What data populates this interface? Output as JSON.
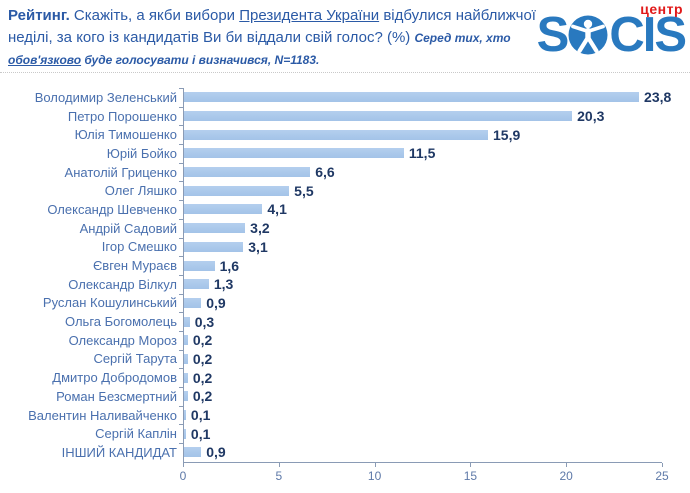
{
  "header": {
    "title_bold": "Рейтинг.",
    "q_part1": "Скажіть, а якби вибори",
    "q_underlined": "Президента України",
    "q_part2": "відбулися найближчої неділі, за кого із кандидатів Ви би віддали свій голос? (%)",
    "note_part1": "Серед тих, хто",
    "note_underlined": "обов'язково",
    "note_part2": "буде голосувати і визначився, N=1183."
  },
  "logo": {
    "center_label": "центр",
    "brand_prefix": "S",
    "brand_suffix": "CIS",
    "figure_icon": "vitruvian-man-icon",
    "brand_color": "#2979BF",
    "center_color": "#E11A1A"
  },
  "chart_data": {
    "type": "bar",
    "orientation": "horizontal",
    "categories": [
      "Володимир Зеленський",
      "Петро Порошенко",
      "Юлія Тимошенко",
      "Юрій Бойко",
      "Анатолій Гриценко",
      "Олег Ляшко",
      "Олександр Шевченко",
      "Андрій Садовий",
      "Ігор Смешко",
      "Євген Мураєв",
      "Олександр Вілкул",
      "Руслан Кошулинський",
      "Ольга Богомолець",
      "Олександр Мороз",
      "Сергій Тарута",
      "Дмитро Добродомов",
      "Роман Безсмертний",
      "Валентин Наливайченко",
      "Сергій Каплін",
      "ІНШИЙ КАНДИДАТ"
    ],
    "values": [
      23.8,
      20.3,
      15.9,
      11.5,
      6.6,
      5.5,
      4.1,
      3.2,
      3.1,
      1.6,
      1.3,
      0.9,
      0.3,
      0.2,
      0.2,
      0.2,
      0.2,
      0.1,
      0.1,
      0.9
    ],
    "value_labels": [
      "23,8",
      "20,3",
      "15,9",
      "11,5",
      "6,6",
      "5,5",
      "4,1",
      "3,2",
      "3,1",
      "1,6",
      "1,3",
      "0,9",
      "0,3",
      "0,2",
      "0,2",
      "0,2",
      "0,2",
      "0,1",
      "0,1",
      "0,9"
    ],
    "xlim": [
      0,
      25
    ],
    "x_ticks": [
      0,
      5,
      10,
      15,
      20,
      25
    ],
    "bar_color": "#A9C7E9",
    "label_color": "#4A70AE",
    "value_color": "#1F3864",
    "grid": false,
    "legend": false
  }
}
